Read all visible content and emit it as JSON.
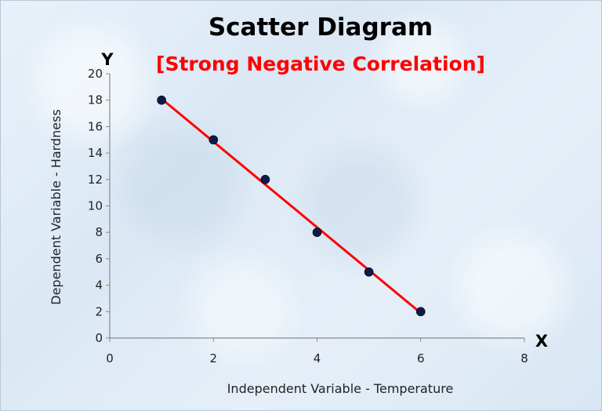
{
  "chart_data": {
    "type": "scatter",
    "title": "Scatter Diagram",
    "subtitle": "[Strong Negative Correlation]",
    "xlabel": "Independent Variable - Temperature",
    "ylabel": "Dependent Variable - Hardness",
    "x_axis_letter": "X",
    "y_axis_letter": "Y",
    "xlim": [
      0,
      8
    ],
    "ylim": [
      0,
      20
    ],
    "x_ticks": [
      0,
      2,
      4,
      6,
      8
    ],
    "y_ticks": [
      0,
      2,
      4,
      6,
      8,
      10,
      12,
      14,
      16,
      18,
      20
    ],
    "grid": false,
    "series": [
      {
        "x": [
          1,
          2,
          3,
          4,
          5,
          6
        ],
        "y": [
          18,
          15,
          12,
          8,
          5,
          2
        ]
      }
    ],
    "trendline": {
      "from": [
        1,
        18.1
      ],
      "to": [
        6,
        1.9
      ]
    },
    "colors": {
      "points": "#0d1b4c",
      "trendline": "#ff0000",
      "title": "#000000",
      "subtitle": "#ff0000",
      "axis": "#8a8a8a"
    }
  }
}
